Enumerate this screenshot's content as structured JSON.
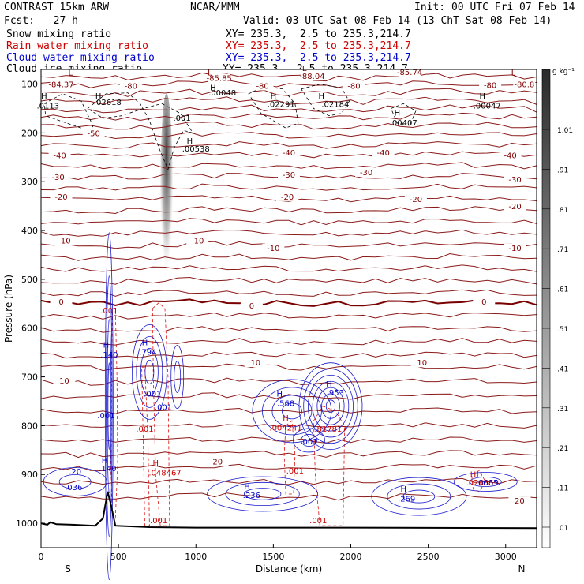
{
  "header": {
    "model": "CONTRAST 15km ARW",
    "org": "NCAR/MMM",
    "init": "Init: 00 UTC Fri 07 Feb 14",
    "fcst": "Fcst:   27 h",
    "valid": "Valid: 03 UTC Sat 08 Feb 14 (13 ChT Sat 08 Feb 14)"
  },
  "fields": [
    {
      "label": "Snow mixing ratio",
      "xy": "XY= 235.3,  2.5 to 235.3,214.7",
      "color": "#000000"
    },
    {
      "label": "Rain water mixing ratio",
      "xy": "XY= 235.3,  2.5 to 235.3,214.7",
      "color": "#cc0000"
    },
    {
      "label": "Cloud water mixing ratio",
      "xy": "XY= 235.3,  2.5 to 235.3,214.7",
      "color": "#0000cc"
    },
    {
      "label": "Cloud ice mixing ratio",
      "xy": "XY= 235.3,  2.5 to 235.3,214.7",
      "color": "#000000"
    }
  ],
  "chart_data": {
    "type": "cross-section",
    "xlabel": "Distance (km)",
    "ylabel": "Pressure (hPa)",
    "xlim": [
      0,
      3200
    ],
    "ylim": [
      1050,
      70
    ],
    "x_ticks": [
      0,
      500,
      1000,
      1500,
      2000,
      2500,
      3000
    ],
    "y_ticks": [
      100,
      200,
      300,
      400,
      500,
      600,
      700,
      800,
      900,
      1000
    ],
    "end_labels": {
      "left": "S",
      "right": "N"
    },
    "colorbar": {
      "unit": "g kg⁻¹",
      "ticks": [
        "1.01",
        ".91",
        ".81",
        ".71",
        ".61",
        ".51",
        ".41",
        ".31",
        ".21",
        ".11",
        ".01"
      ]
    },
    "temperature_contours": [
      {
        "label": "-80",
        "p": 105
      },
      {
        "label": "-70",
        "p": 140
      },
      {
        "label": "-60",
        "p": 170
      },
      {
        "label": "-50",
        "p": 200
      },
      {
        "label": "-40",
        "p": 245
      },
      {
        "label": "-30",
        "p": 290
      },
      {
        "label": "-20",
        "p": 335
      },
      {
        "label": "-10",
        "p": 430
      },
      {
        "label": "0",
        "p": 548
      },
      {
        "label": "10",
        "p": 700
      },
      {
        "label": "20",
        "p": 850
      }
    ],
    "temperature_labels": [
      {
        "text": "-84.37",
        "x": 130,
        "p": 105
      },
      {
        "text": "-85.85",
        "x": 1150,
        "p": 92
      },
      {
        "text": "-88.04",
        "x": 1750,
        "p": 88
      },
      {
        "text": "-85.74",
        "x": 2380,
        "p": 80
      },
      {
        "text": "-80.8",
        "x": 3120,
        "p": 105
      },
      {
        "text": "-80",
        "x": 580,
        "p": 108
      },
      {
        "text": "-80",
        "x": 1430,
        "p": 108
      },
      {
        "text": "-80",
        "x": 2020,
        "p": 108
      },
      {
        "text": "-80",
        "x": 2900,
        "p": 106
      },
      {
        "text": "-50",
        "x": 340,
        "p": 205
      },
      {
        "text": "-40",
        "x": 120,
        "p": 250
      },
      {
        "text": "-40",
        "x": 1600,
        "p": 245
      },
      {
        "text": "-40",
        "x": 2210,
        "p": 245
      },
      {
        "text": "-40",
        "x": 3030,
        "p": 250
      },
      {
        "text": "-30",
        "x": 110,
        "p": 295
      },
      {
        "text": "-30",
        "x": 1600,
        "p": 290
      },
      {
        "text": "-30",
        "x": 2100,
        "p": 285
      },
      {
        "text": "-30",
        "x": 3060,
        "p": 300
      },
      {
        "text": "-20",
        "x": 130,
        "p": 335
      },
      {
        "text": "-20",
        "x": 1590,
        "p": 335
      },
      {
        "text": "-20",
        "x": 2420,
        "p": 340
      },
      {
        "text": "-20",
        "x": 3060,
        "p": 355
      },
      {
        "text": "-10",
        "x": 150,
        "p": 425
      },
      {
        "text": "-10",
        "x": 1010,
        "p": 425
      },
      {
        "text": "-10",
        "x": 1500,
        "p": 440
      },
      {
        "text": "-10",
        "x": 3060,
        "p": 440
      },
      {
        "text": "0",
        "x": 130,
        "p": 550
      },
      {
        "text": "0",
        "x": 1360,
        "p": 558
      },
      {
        "text": "0",
        "x": 2860,
        "p": 550
      },
      {
        "text": "10",
        "x": 150,
        "p": 712
      },
      {
        "text": "10",
        "x": 1385,
        "p": 675
      },
      {
        "text": "10",
        "x": 2460,
        "p": 675
      },
      {
        "text": "20",
        "x": 1140,
        "p": 878
      },
      {
        "text": "20",
        "x": 3090,
        "p": 958
      }
    ],
    "extrema_labels": [
      {
        "text": "L",
        "x": 190,
        "p": 82,
        "color": "#800000"
      },
      {
        "text": "L",
        "x": 1090,
        "p": 82,
        "color": "#800000"
      },
      {
        "text": "L",
        "x": 1700,
        "p": 73,
        "color": "#800000"
      },
      {
        "text": "L",
        "x": 3050,
        "p": 82,
        "color": "#800000"
      },
      {
        "text": "H",
        "x": 20,
        "p": 130,
        "color": "#000000"
      },
      {
        "text": ".0113",
        "x": 45,
        "p": 150,
        "color": "#000000"
      },
      {
        "text": "H",
        "x": 370,
        "p": 130,
        "color": "#000000"
      },
      {
        "text": ".02618",
        "x": 430,
        "p": 143,
        "color": "#000000"
      },
      {
        "text": "H",
        "x": 1110,
        "p": 113,
        "color": "#000000"
      },
      {
        "text": ".00048",
        "x": 1170,
        "p": 123,
        "color": "#000000"
      },
      {
        "text": "H",
        "x": 1500,
        "p": 130,
        "color": "#000000"
      },
      {
        "text": ".02291",
        "x": 1550,
        "p": 147,
        "color": "#000000"
      },
      {
        "text": "H",
        "x": 1810,
        "p": 130,
        "color": "#000000"
      },
      {
        "text": ".02184",
        "x": 1900,
        "p": 147,
        "color": "#000000"
      },
      {
        "text": "H",
        "x": 2300,
        "p": 165,
        "color": "#000000"
      },
      {
        "text": ".00407",
        "x": 2340,
        "p": 185,
        "color": "#000000"
      },
      {
        "text": "H",
        "x": 2850,
        "p": 130,
        "color": "#000000"
      },
      {
        "text": ".00047",
        "x": 2880,
        "p": 150,
        "color": "#000000"
      },
      {
        "text": ".001",
        "x": 910,
        "p": 175,
        "color": "#000000"
      },
      {
        "text": "H",
        "x": 960,
        "p": 222,
        "color": "#000000"
      },
      {
        "text": ".00538",
        "x": 1000,
        "p": 238,
        "color": "#000000"
      },
      {
        "text": "H",
        "x": 420,
        "p": 640,
        "color": "#0000cc"
      },
      {
        "text": ".140",
        "x": 440,
        "p": 660,
        "color": "#0000cc"
      },
      {
        "text": ".001",
        "x": 440,
        "p": 570,
        "color": "#cc0000"
      },
      {
        "text": "H",
        "x": 670,
        "p": 635,
        "color": "#0000cc"
      },
      {
        "text": ".794",
        "x": 690,
        "p": 655,
        "color": "#0000cc"
      },
      {
        "text": ".001",
        "x": 720,
        "p": 740,
        "color": "#0000cc"
      },
      {
        "text": ".001",
        "x": 790,
        "p": 768,
        "color": "#0000cc"
      },
      {
        "text": ".001",
        "x": 420,
        "p": 785,
        "color": "#0000cc"
      },
      {
        "text": ".001",
        "x": 670,
        "p": 812,
        "color": "#cc0000"
      },
      {
        "text": "H",
        "x": 410,
        "p": 877,
        "color": "#0000cc"
      },
      {
        "text": ".140",
        "x": 430,
        "p": 893,
        "color": "#0000cc"
      },
      {
        "text": "H",
        "x": 740,
        "p": 882,
        "color": "#cc0000"
      },
      {
        "text": ".048467",
        "x": 800,
        "p": 902,
        "color": "#cc0000"
      },
      {
        "text": ".20",
        "x": 220,
        "p": 900,
        "color": "#0000cc"
      },
      {
        "text": ".036",
        "x": 210,
        "p": 932,
        "color": "#0000cc"
      },
      {
        "text": ".001",
        "x": 760,
        "p": 1000,
        "color": "#cc0000"
      },
      {
        "text": "H",
        "x": 1540,
        "p": 740,
        "color": "#0000cc"
      },
      {
        "text": ".568",
        "x": 1580,
        "p": 760,
        "color": "#0000cc"
      },
      {
        "text": "H",
        "x": 1580,
        "p": 790,
        "color": "#cc0000"
      },
      {
        "text": ".004241",
        "x": 1580,
        "p": 810,
        "color": "#cc0000"
      },
      {
        "text": "H",
        "x": 1860,
        "p": 720,
        "color": "#0000cc"
      },
      {
        "text": ".953",
        "x": 1900,
        "p": 738,
        "color": "#0000cc"
      },
      {
        "text": ".817817",
        "x": 1870,
        "p": 812,
        "color": "#cc0000"
      },
      {
        "text": ".001",
        "x": 1730,
        "p": 838,
        "color": "#0000cc"
      },
      {
        "text": ".001",
        "x": 1640,
        "p": 898,
        "color": "#cc0000"
      },
      {
        "text": "H",
        "x": 1330,
        "p": 930,
        "color": "#0000cc"
      },
      {
        "text": ".236",
        "x": 1360,
        "p": 948,
        "color": "#0000cc"
      },
      {
        "text": ".001",
        "x": 1790,
        "p": 1000,
        "color": "#cc0000"
      },
      {
        "text": "H",
        "x": 2340,
        "p": 935,
        "color": "#0000cc"
      },
      {
        "text": ".269",
        "x": 2360,
        "p": 955,
        "color": "#0000cc"
      },
      {
        "text": "H",
        "x": 2790,
        "p": 905,
        "color": "#cc0000"
      },
      {
        "text": "H",
        "x": 2830,
        "p": 905,
        "color": "#0000cc"
      },
      {
        "text": ".026859",
        "x": 2850,
        "p": 922,
        "color": "#cc0000"
      },
      {
        "text": ".0065",
        "x": 2880,
        "p": 922,
        "color": "#0000cc"
      }
    ]
  }
}
